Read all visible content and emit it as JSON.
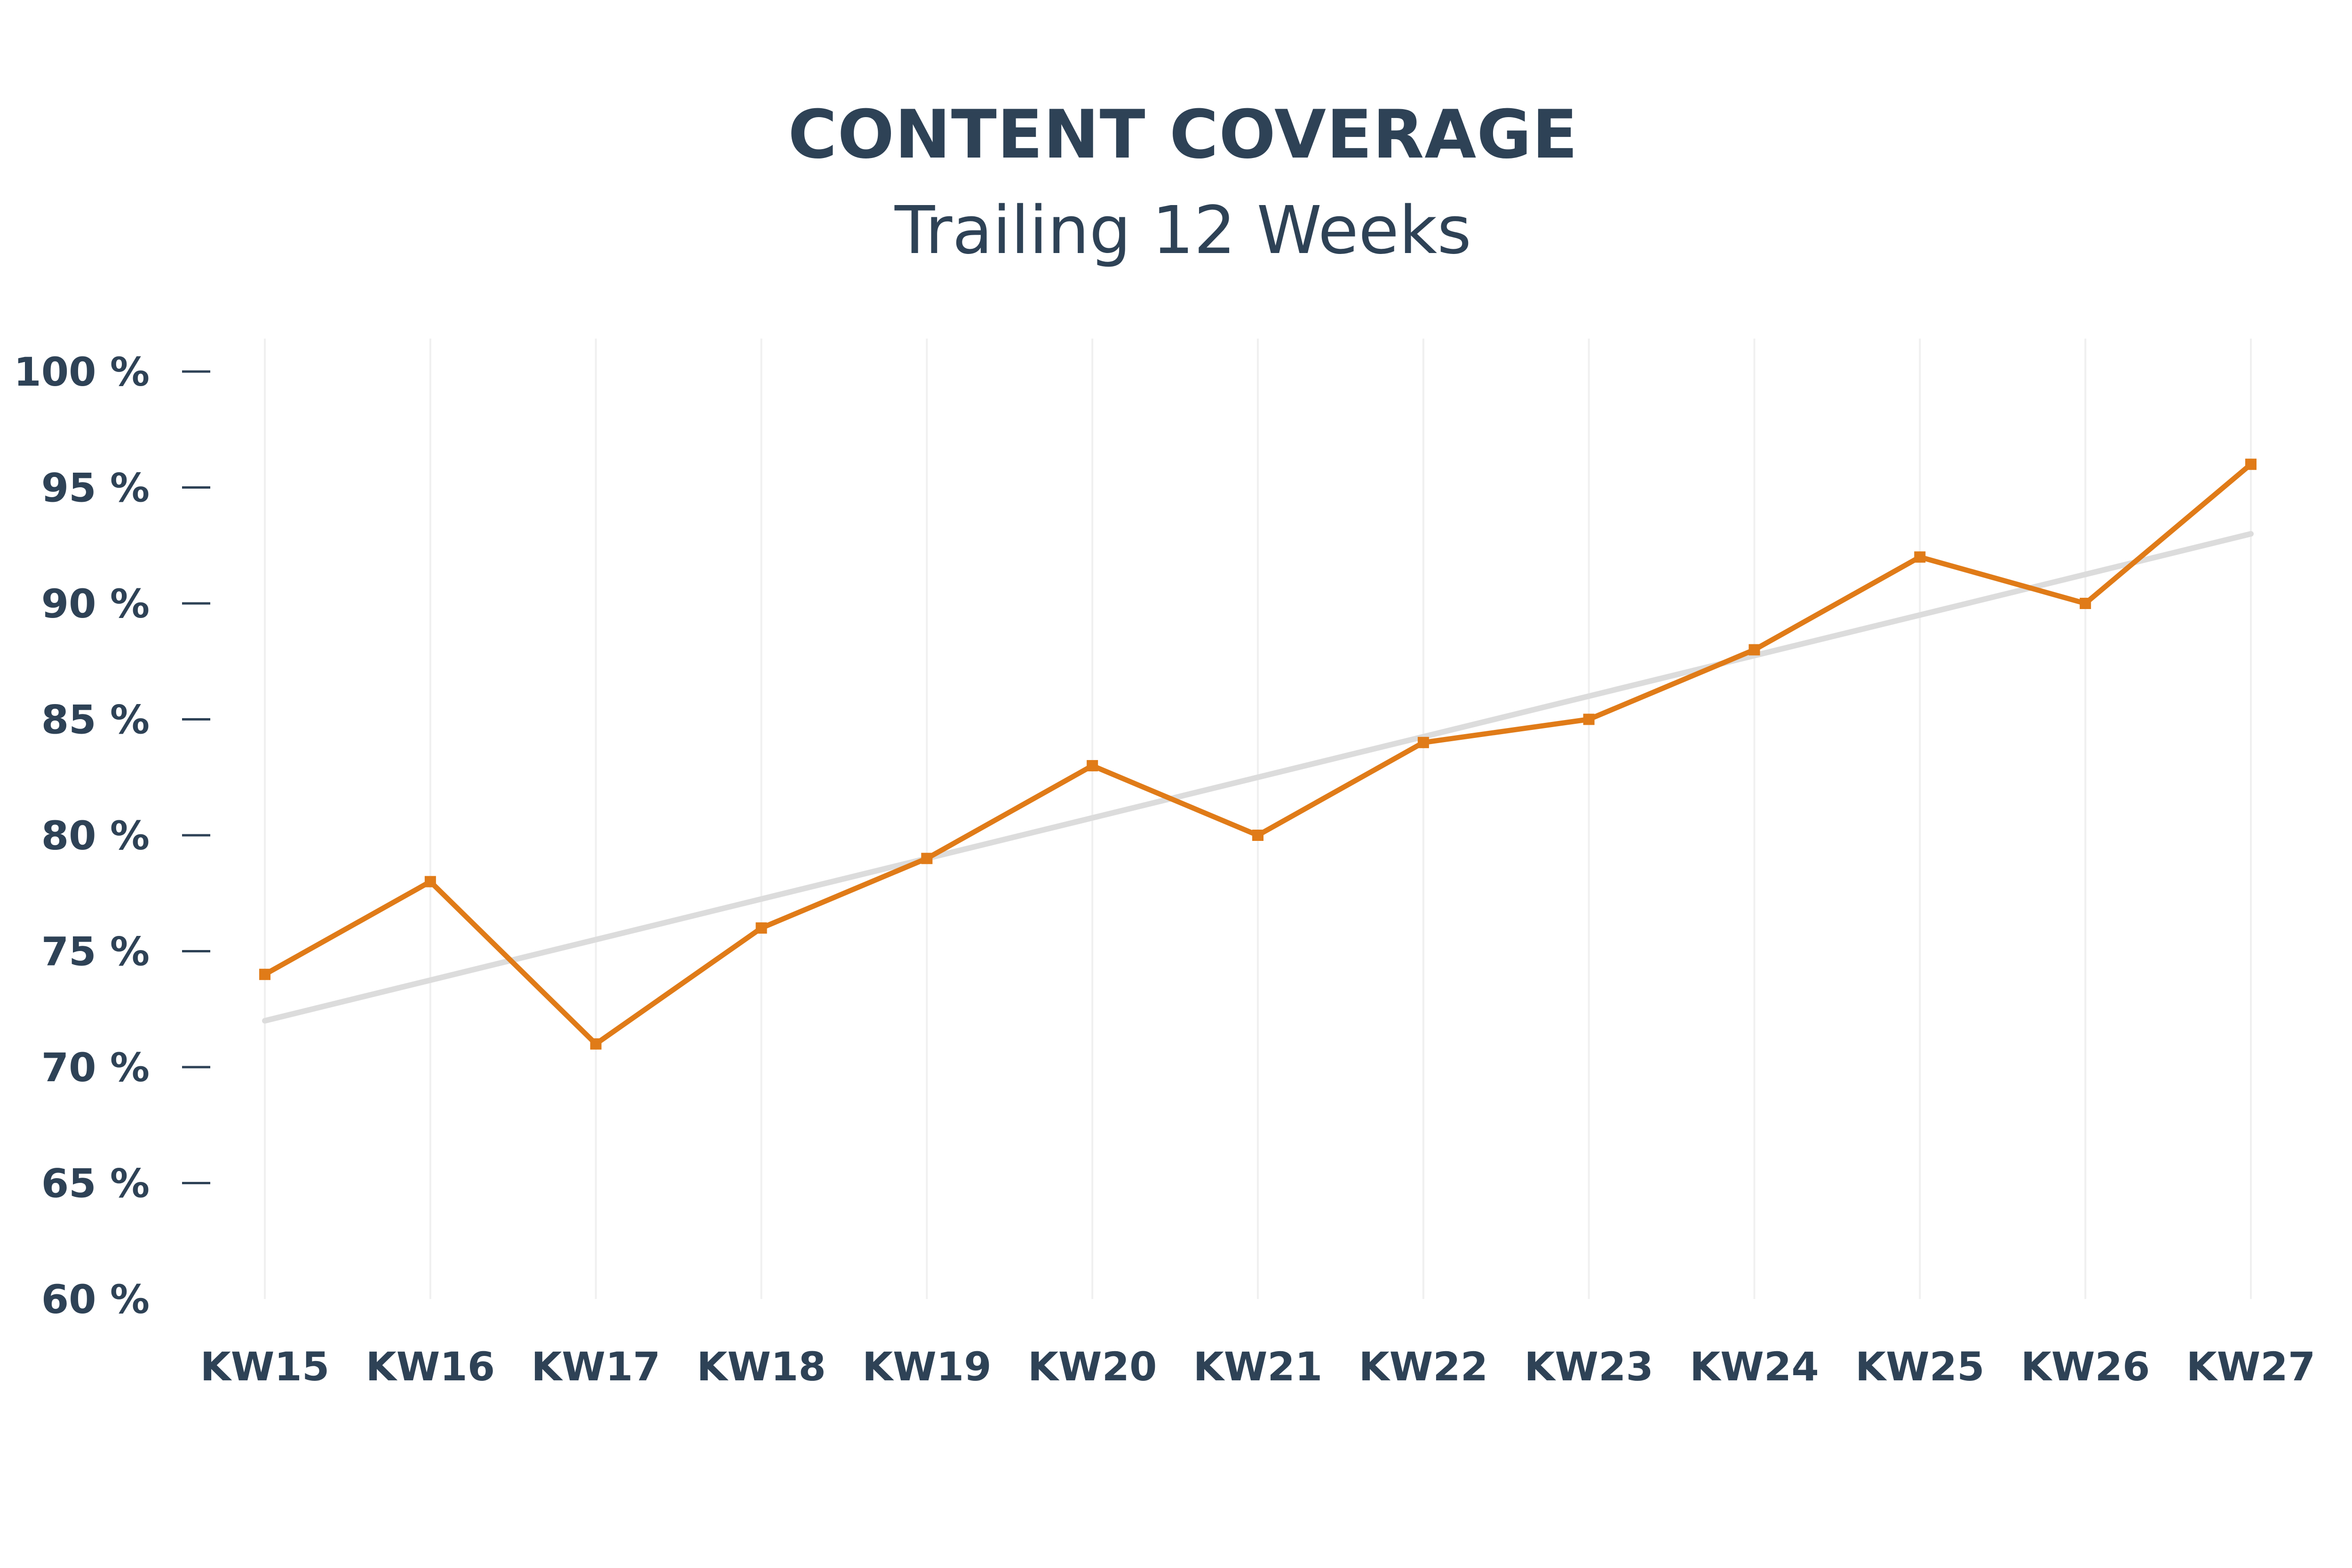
{
  "colors": {
    "text": "#2e4256",
    "series": "#e07b18",
    "trend": "#dcdcdc",
    "grid": "#f0f0f0"
  },
  "chart_data": {
    "type": "line",
    "title": "CONTENT COVERAGE",
    "subtitle": "Trailing 12 Weeks",
    "xlabel": "",
    "ylabel": "",
    "categories": [
      "KW15",
      "KW16",
      "KW17",
      "KW18",
      "KW19",
      "KW20",
      "KW21",
      "KW22",
      "KW23",
      "KW24",
      "KW25",
      "KW26",
      "KW27"
    ],
    "series": [
      {
        "values": [
          74,
          78,
          71,
          76,
          79,
          83,
          80,
          84,
          85,
          88,
          92,
          90,
          96
        ]
      }
    ],
    "trendline": {
      "type": "linear",
      "start": 72,
      "end": 93
    },
    "ylim": [
      60,
      100
    ],
    "yticks": [
      60,
      65,
      70,
      75,
      80,
      85,
      90,
      95,
      100
    ],
    "ytick_labels": [
      "60 %",
      "65 %",
      "70 %",
      "75 %",
      "80 %",
      "85 %",
      "90 %",
      "95 %",
      "100 %"
    ],
    "grid": {
      "vertical": true,
      "horizontal": false
    },
    "legend": "none"
  }
}
